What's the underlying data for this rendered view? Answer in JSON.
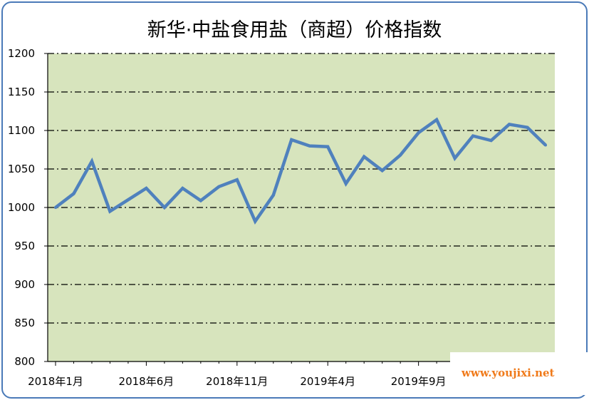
{
  "chart_data": {
    "type": "line",
    "title": "新华·中盐食用盐（商超）价格指数",
    "xlabel": "",
    "ylabel": "",
    "ylim": [
      800,
      1200
    ],
    "yticks": [
      800,
      850,
      900,
      950,
      1000,
      1050,
      1100,
      1150,
      1200
    ],
    "x_tick_labels": [
      "2018年1月",
      "2018年6月",
      "2018年11月",
      "2019年4月",
      "2019年9月"
    ],
    "x": [
      "2018年1月",
      "2018年2月",
      "2018年3月",
      "2018年4月",
      "2018年5月",
      "2018年6月",
      "2018年7月",
      "2018年8月",
      "2018年9月",
      "2018年10月",
      "2018年11月",
      "2018年12月",
      "2019年1月",
      "2019年2月",
      "2019年3月",
      "2019年4月",
      "2019年5月",
      "2019年6月",
      "2019年7月",
      "2019年8月",
      "2019年9月",
      "2019年10月",
      "2019年11月",
      "2019年12月",
      "2020年1月",
      "2020年2月",
      "2020年3月",
      "2020年4月"
    ],
    "series": [
      {
        "name": "",
        "values": [
          1000,
          1018,
          1060,
          995,
          1010,
          1025,
          1000,
          1025,
          1009,
          1027,
          1036,
          982,
          1016,
          1088,
          1080,
          1079,
          1031,
          1066,
          1048,
          1068,
          1097,
          1114,
          1064,
          1093,
          1087,
          1108,
          1104,
          1081
        ]
      }
    ],
    "grid": true,
    "plot_background": "#d7e4bd",
    "line_color": "#4f81bd"
  },
  "watermark": "www.youjixi.net"
}
